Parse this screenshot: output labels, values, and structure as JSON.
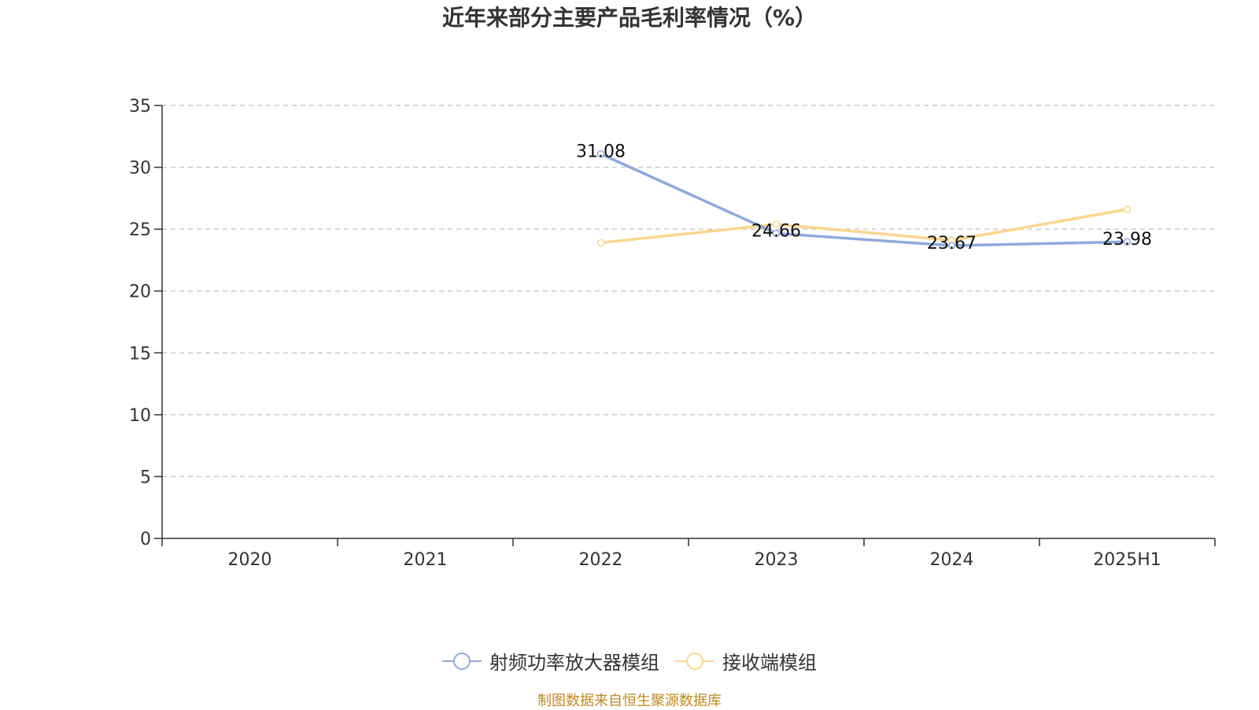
{
  "title": "近年来部分主要产品毛利率情况（%）",
  "source": "制图数据来自恒生聚源数据库",
  "colors": {
    "series1": "#8eaadb",
    "series2": "#fbd68f",
    "grid": "#cccccc",
    "axis": "#333333",
    "source": "#c08a1e"
  },
  "chart_data": {
    "type": "line",
    "title": "近年来部分主要产品毛利率情况（%）",
    "categories": [
      "2020",
      "2021",
      "2022",
      "2023",
      "2024",
      "2025H1"
    ],
    "ylim": [
      0,
      35
    ],
    "yticks": [
      "0",
      "5",
      "10",
      "15",
      "20",
      "25",
      "30",
      "35"
    ],
    "grid": true,
    "legend_position": "bottom",
    "series": [
      {
        "name": "射频功率放大器模组",
        "values": [
          null,
          null,
          31.08,
          24.66,
          23.67,
          23.98
        ],
        "labels": [
          "",
          "",
          "31.08",
          "24.66",
          "23.67",
          "23.98"
        ]
      },
      {
        "name": "接收端模组",
        "values": [
          null,
          null,
          23.9,
          25.4,
          24.1,
          26.6
        ],
        "labels": [
          "",
          "",
          "",
          "",
          "",
          ""
        ]
      }
    ]
  }
}
